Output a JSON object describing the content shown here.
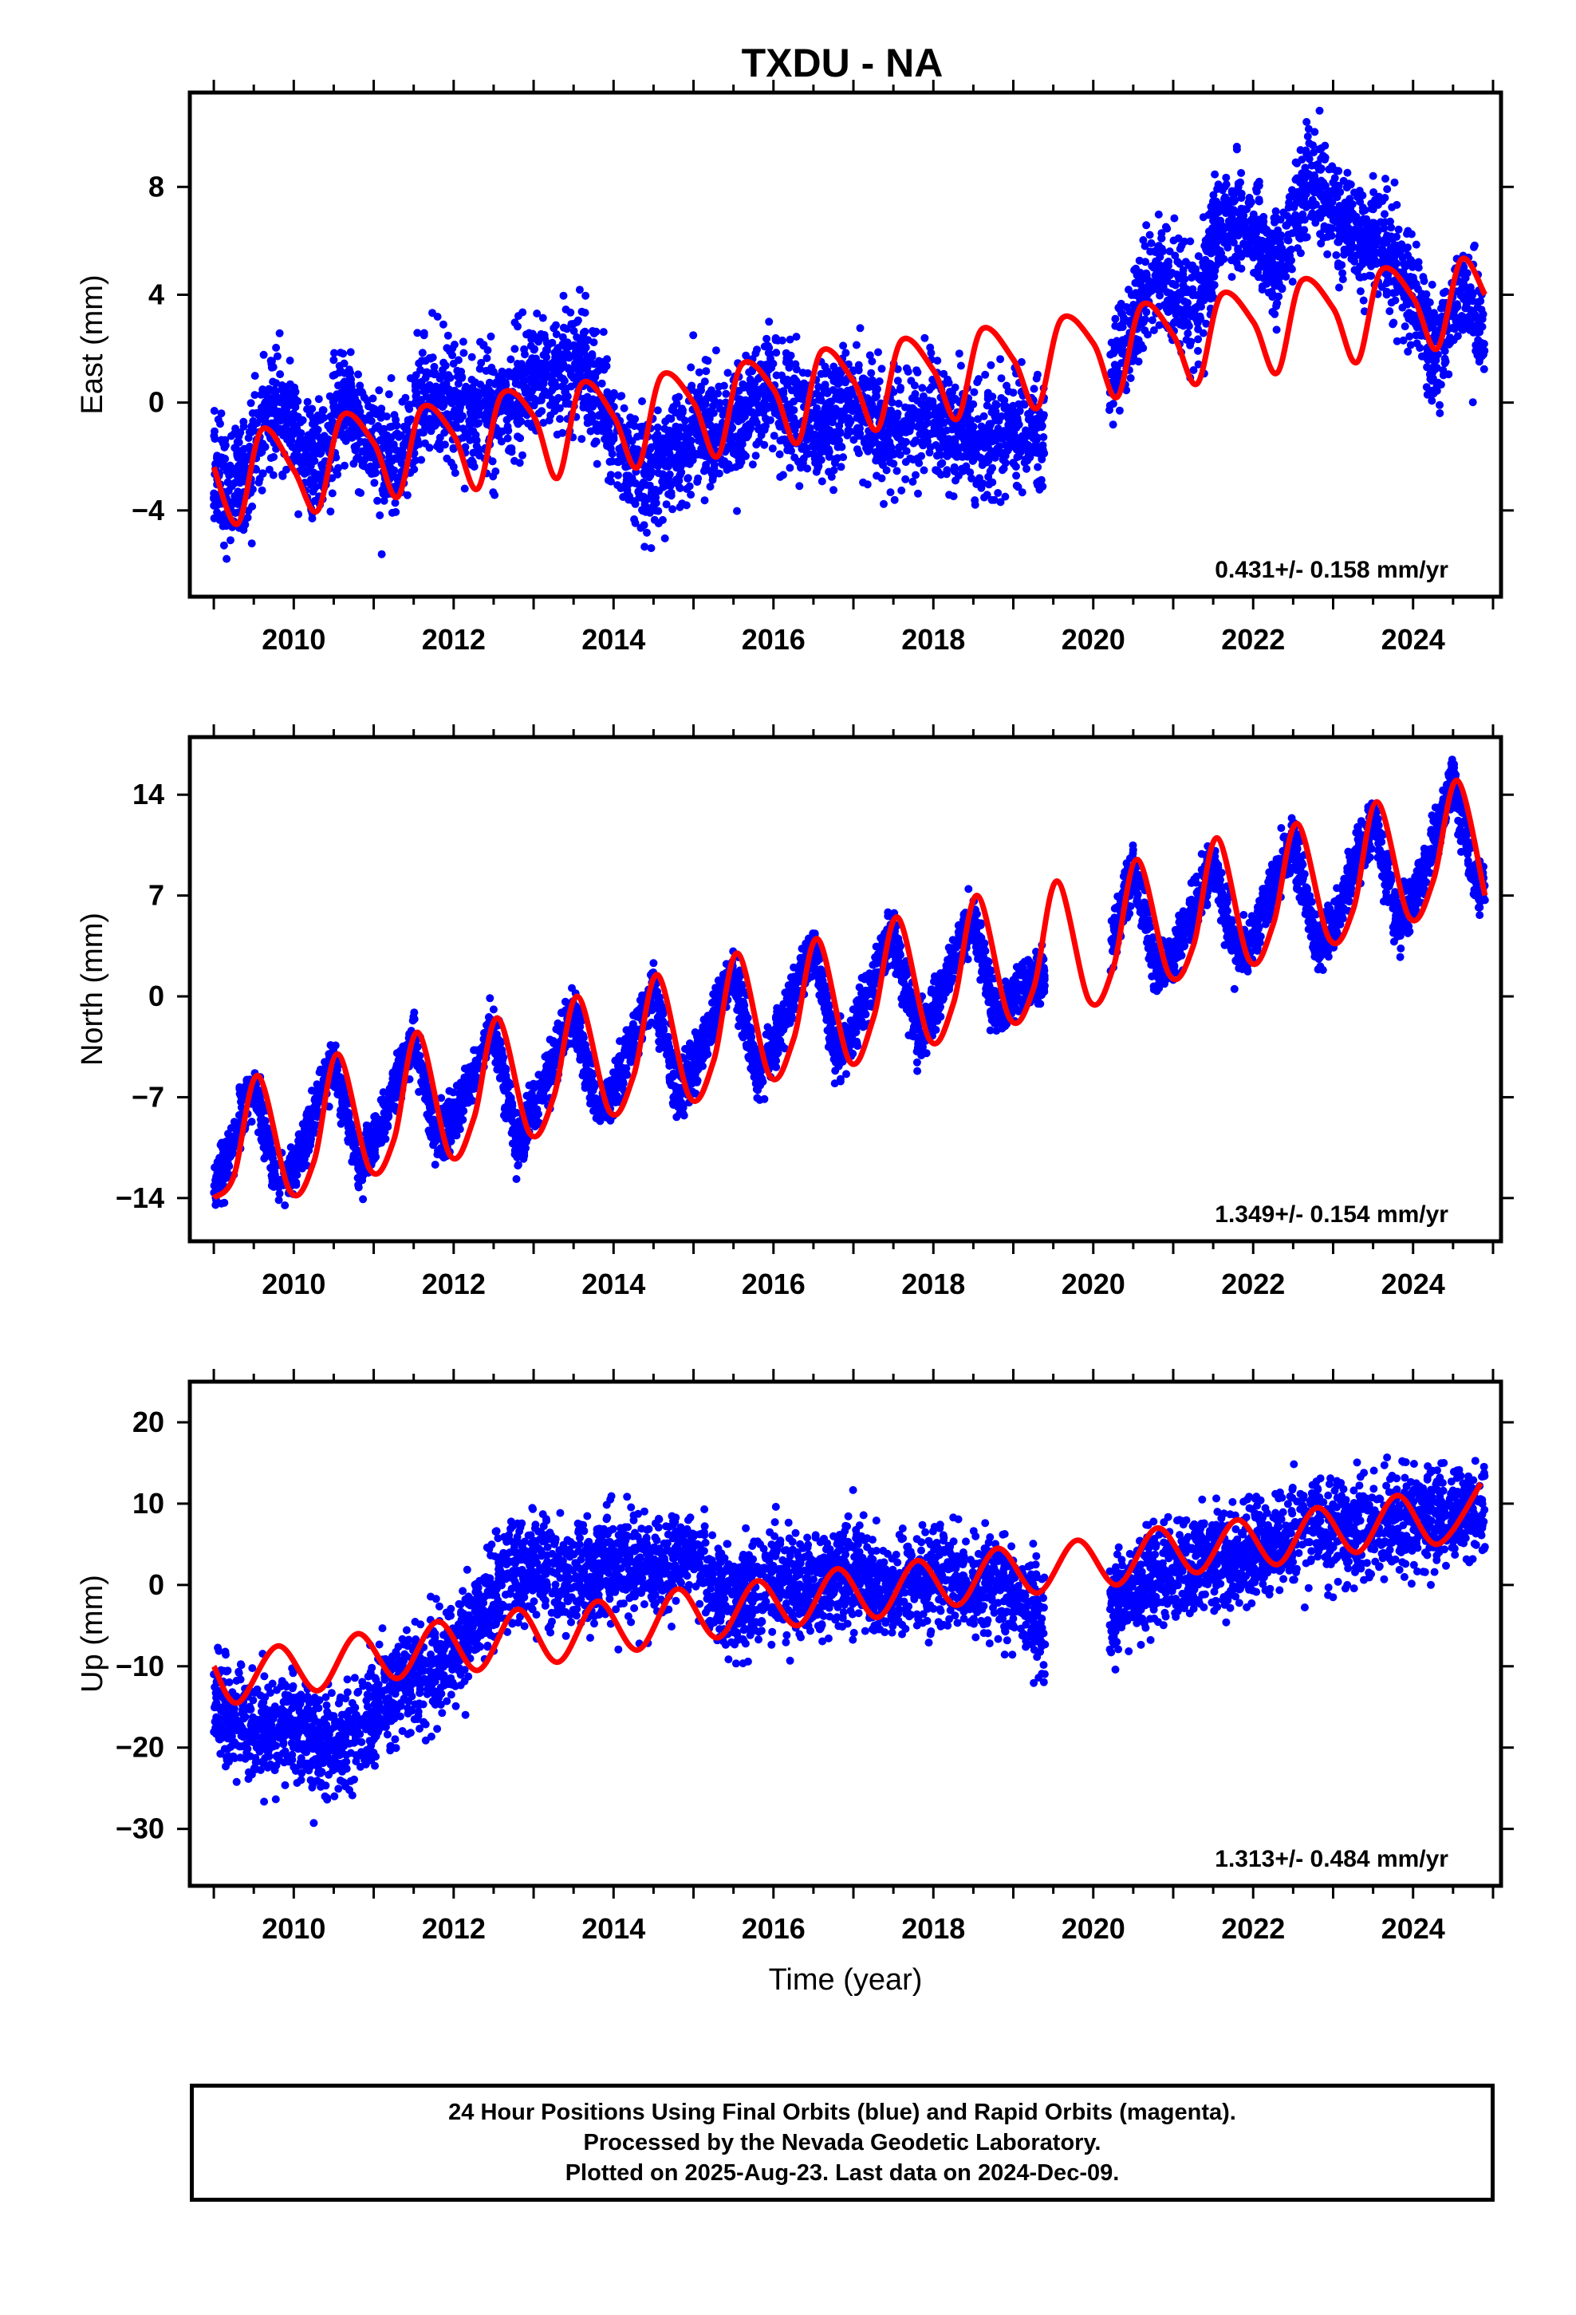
{
  "title": "TXDU - NA",
  "colors": {
    "data_points": "#0000ff",
    "model_fit": "#ff0000",
    "frame": "#000000"
  },
  "chart_data": [
    {
      "type": "scatter",
      "title": "TXDU - NA",
      "ylabel": "East (mm)",
      "xlabel": "",
      "xlim": [
        2008.7,
        2025.1
      ],
      "ylim": [
        -7.2,
        11.5
      ],
      "xticks": [
        2010,
        2012,
        2014,
        2016,
        2018,
        2020,
        2022,
        2024
      ],
      "yticks": [
        -4,
        0,
        4,
        8
      ],
      "rate_label": "0.431+/- 0.158 mm/yr",
      "series": [
        {
          "role": "daily positions",
          "segments": [
            {
              "x": [
                2009.0,
                2009.2,
                2009.5,
                2009.8,
                2010.0,
                2010.3,
                2010.6,
                2011.0,
                2011.3,
                2011.6,
                2012.0,
                2012.5,
                2013.0,
                2013.6,
                2014.0,
                2014.4,
                2015.0,
                2015.5,
                2016.0,
                2016.5,
                2017.0,
                2017.5,
                2018.0,
                2018.5,
                2019.0,
                2019.4
              ],
              "y": [
                -2.5,
                -3.5,
                -2.0,
                0.0,
                -1.0,
                -2.5,
                0.0,
                -1.5,
                -2.5,
                0.5,
                0.0,
                -0.5,
                1.0,
                1.5,
                -1.0,
                -3.0,
                -1.0,
                -1.0,
                0.5,
                -1.0,
                0.0,
                -1.0,
                -0.5,
                -1.5,
                -1.0,
                -1.0
              ],
              "scatter": 1.5
            },
            {
              "x": [
                2020.2,
                2020.5,
                2020.8,
                2021.0,
                2021.3,
                2021.6,
                2022.0,
                2022.3,
                2022.7,
                2023.0,
                2023.3,
                2023.6,
                2024.0,
                2024.3,
                2024.6,
                2024.9
              ],
              "y": [
                0.5,
                3.0,
                5.0,
                4.0,
                3.5,
                7.0,
                6.5,
                5.0,
                8.5,
                7.0,
                6.0,
                6.0,
                4.0,
                1.5,
                4.5,
                2.0
              ],
              "scatter": 1.4
            }
          ]
        },
        {
          "role": "model fit",
          "x": [
            2009.0,
            2009.3,
            2009.6,
            2010.0,
            2010.3,
            2010.6,
            2011.0,
            2011.3,
            2011.6,
            2012.0,
            2012.3,
            2012.6,
            2013.0,
            2013.3,
            2013.6,
            2014.0,
            2014.3,
            2014.6,
            2015.0,
            2015.3,
            2015.6,
            2016.0,
            2016.3,
            2016.6,
            2017.0,
            2017.3,
            2017.6,
            2018.0,
            2018.3,
            2018.6,
            2019.0,
            2019.3,
            2019.6,
            2020.0,
            2020.3,
            2020.6,
            2021.0,
            2021.3,
            2021.6,
            2022.0,
            2022.3,
            2022.6,
            2023.0,
            2023.3,
            2023.6,
            2024.0,
            2024.3,
            2024.6,
            2024.9
          ],
          "y": [
            -2.4,
            -4.5,
            -1.0,
            -2.5,
            -4.0,
            -0.5,
            -1.5,
            -3.5,
            -0.2,
            -1.2,
            -3.2,
            0.3,
            -0.5,
            -2.8,
            0.7,
            -0.5,
            -2.4,
            1.0,
            0.0,
            -2.0,
            1.4,
            0.5,
            -1.5,
            1.9,
            0.8,
            -1.0,
            2.3,
            1.2,
            -0.6,
            2.7,
            1.6,
            -0.2,
            3.1,
            2.2,
            0.2,
            3.6,
            2.5,
            0.7,
            4.0,
            3.0,
            1.1,
            4.5,
            3.5,
            1.5,
            4.9,
            3.9,
            2.0,
            5.3,
            4.0
          ]
        }
      ]
    },
    {
      "type": "scatter",
      "ylabel": "North (mm)",
      "xlabel": "",
      "xlim": [
        2008.7,
        2025.1
      ],
      "ylim": [
        -17,
        18
      ],
      "xticks": [
        2010,
        2012,
        2014,
        2016,
        2018,
        2020,
        2022,
        2024
      ],
      "yticks": [
        -14,
        -7,
        0,
        7,
        14
      ],
      "rate_label": "1.349+/- 0.154 mm/yr",
      "series": [
        {
          "role": "daily positions",
          "segments": [
            {
              "x": [
                2009.0,
                2009.5,
                2009.8,
                2010.0,
                2010.5,
                2010.8,
                2011.0,
                2011.5,
                2011.8,
                2012.0,
                2012.5,
                2012.8,
                2013.0,
                2013.5,
                2013.8,
                2014.0,
                2014.5,
                2014.8,
                2015.0,
                2015.5,
                2015.8,
                2016.0,
                2016.5,
                2016.8,
                2017.0,
                2017.5,
                2017.8,
                2018.0,
                2018.5,
                2018.8,
                2019.0,
                2019.4
              ],
              "y": [
                -13.5,
                -6.0,
                -13.0,
                -12.0,
                -4.5,
                -11.5,
                -10.0,
                -3.0,
                -10.0,
                -8.5,
                -2.0,
                -10.5,
                -8.0,
                -1.0,
                -8.0,
                -6.5,
                0.5,
                -7.0,
                -5.0,
                2.0,
                -5.5,
                -3.5,
                3.5,
                -4.0,
                -2.5,
                4.5,
                -2.5,
                -1.0,
                5.5,
                -1.5,
                0.0,
                1.5
              ],
              "scatter": 1.3
            },
            {
              "x": [
                2020.2,
                2020.5,
                2020.8,
                2021.0,
                2021.5,
                2021.8,
                2022.0,
                2022.5,
                2022.8,
                2023.0,
                2023.5,
                2023.8,
                2024.0,
                2024.5,
                2024.8,
                2024.9
              ],
              "y": [
                3.0,
                9.0,
                1.5,
                3.0,
                9.5,
                2.5,
                4.0,
                11.0,
                3.5,
                5.0,
                12.5,
                5.0,
                6.5,
                15.0,
                7.5,
                8.0
              ],
              "scatter": 1.3
            }
          ]
        },
        {
          "role": "model fit",
          "x": [
            2009.0,
            2009.25,
            2009.55,
            2009.95,
            2010.25,
            2010.55,
            2010.95,
            2011.25,
            2011.55,
            2011.95,
            2012.25,
            2012.55,
            2012.95,
            2013.25,
            2013.55,
            2013.95,
            2014.25,
            2014.55,
            2014.95,
            2015.25,
            2015.55,
            2015.95,
            2016.25,
            2016.55,
            2016.95,
            2017.25,
            2017.55,
            2017.95,
            2018.25,
            2018.55,
            2018.95,
            2019.25,
            2019.55,
            2019.95,
            2020.25,
            2020.55,
            2020.95,
            2021.25,
            2021.55,
            2021.95,
            2022.25,
            2022.55,
            2022.95,
            2023.25,
            2023.55,
            2023.95,
            2024.25,
            2024.55,
            2024.9
          ],
          "y": [
            -14.0,
            -12.5,
            -5.5,
            -13.5,
            -11.5,
            -4.0,
            -12.0,
            -10.0,
            -2.5,
            -11.0,
            -8.5,
            -1.5,
            -9.5,
            -7.0,
            0.0,
            -8.0,
            -5.5,
            1.5,
            -7.0,
            -4.5,
            3.0,
            -5.5,
            -3.0,
            4.0,
            -4.5,
            -1.5,
            5.5,
            -3.0,
            -0.5,
            7.0,
            -1.5,
            0.5,
            8.0,
            -0.3,
            2.0,
            9.5,
            1.5,
            3.5,
            11.0,
            2.5,
            5.0,
            12.0,
            4.0,
            6.0,
            13.5,
            5.5,
            8.0,
            15.0,
            7.0
          ]
        }
      ]
    },
    {
      "type": "scatter",
      "ylabel": "Up (mm)",
      "xlabel": "Time (year)",
      "xlim": [
        2008.7,
        2025.1
      ],
      "ylim": [
        -37,
        25
      ],
      "xticks": [
        2010,
        2012,
        2014,
        2016,
        2018,
        2020,
        2022,
        2024
      ],
      "yticks": [
        -30,
        -20,
        -10,
        0,
        10,
        20
      ],
      "rate_label": "1.313+/- 0.484 mm/yr",
      "series": [
        {
          "role": "daily positions",
          "segments": [
            {
              "x": [
                2009.0,
                2009.5,
                2010.0,
                2010.5,
                2011.0,
                2011.5,
                2012.0,
                2012.3,
                2012.6,
                2013.0,
                2013.5,
                2014.0,
                2014.5,
                2015.0,
                2015.5,
                2016.0,
                2016.5,
                2017.0,
                2017.5,
                2018.0,
                2018.5,
                2019.0,
                2019.4
              ],
              "y": [
                -15.0,
                -18.0,
                -17.0,
                -20.0,
                -15.0,
                -12.0,
                -8.0,
                -4.0,
                0.0,
                2.0,
                0.5,
                2.5,
                2.0,
                3.0,
                -2.0,
                1.0,
                -1.0,
                2.0,
                -1.5,
                1.0,
                0.0,
                -1.0,
                -5.0
              ],
              "scatter": 4.5
            },
            {
              "x": [
                2020.2,
                2020.5,
                2021.0,
                2021.5,
                2022.0,
                2022.5,
                2023.0,
                2023.5,
                2024.0,
                2024.5,
                2024.9
              ],
              "y": [
                -3.0,
                -1.0,
                2.0,
                3.0,
                4.0,
                6.0,
                7.0,
                7.0,
                8.0,
                9.0,
                9.0
              ],
              "scatter": 4.2
            }
          ]
        },
        {
          "role": "model fit",
          "x": [
            2009.0,
            2009.3,
            2009.8,
            2010.3,
            2010.8,
            2011.3,
            2011.8,
            2012.3,
            2012.8,
            2013.3,
            2013.8,
            2014.3,
            2014.8,
            2015.3,
            2015.8,
            2016.3,
            2016.8,
            2017.3,
            2017.8,
            2018.3,
            2018.8,
            2019.3,
            2019.8,
            2020.3,
            2020.8,
            2021.3,
            2021.8,
            2022.3,
            2022.8,
            2023.3,
            2023.8,
            2024.3,
            2024.85
          ],
          "y": [
            -10.0,
            -14.5,
            -7.5,
            -13.0,
            -6.0,
            -11.5,
            -4.5,
            -10.5,
            -3.0,
            -9.5,
            -2.0,
            -8.0,
            -0.5,
            -6.5,
            0.5,
            -5.0,
            2.0,
            -4.0,
            3.0,
            -2.5,
            4.5,
            -1.0,
            5.5,
            0.0,
            7.0,
            1.5,
            8.0,
            2.5,
            9.5,
            4.0,
            11.0,
            5.0,
            12.5
          ]
        }
      ]
    }
  ],
  "footer": {
    "line1": "24 Hour Positions Using Final Orbits (blue) and Rapid Orbits (magenta).",
    "line2": "Processed by the Nevada Geodetic Laboratory.",
    "line3": "Plotted on 2025-Aug-23. Last data on 2024-Dec-09."
  }
}
